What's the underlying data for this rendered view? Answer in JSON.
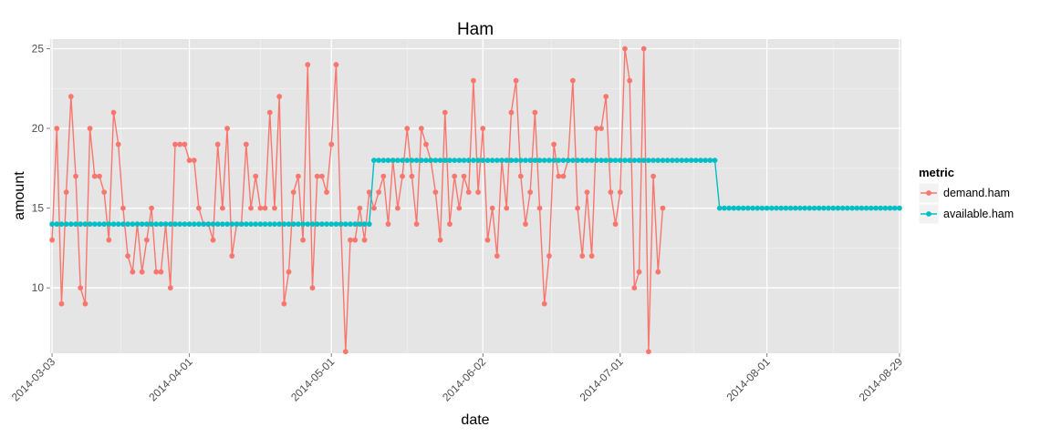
{
  "chart_data": {
    "type": "line",
    "title": "Ham",
    "xlabel": "date",
    "ylabel": "amount",
    "x_start": "2014-03-03",
    "x_end": "2014-08-29",
    "x_ticks": [
      "2014-03-03",
      "2014-04-01",
      "2014-05-01",
      "2014-06-02",
      "2014-07-01",
      "2014-08-01",
      "2014-08-29"
    ],
    "y_ticks": [
      10,
      15,
      20,
      25
    ],
    "ylim": [
      5.9,
      25.6
    ],
    "grid": true,
    "legend": {
      "title": "metric",
      "placement": "right"
    },
    "series": [
      {
        "name": "demand.ham",
        "color": "#F8766D",
        "values": [
          13,
          20,
          9,
          16,
          22,
          17,
          10,
          9,
          20,
          17,
          17,
          16,
          13,
          21,
          19,
          15,
          12,
          11,
          14,
          11,
          13,
          15,
          11,
          11,
          14,
          10,
          19,
          19,
          19,
          18,
          18,
          15,
          14,
          14,
          13,
          19,
          15,
          20,
          12,
          14,
          14,
          19,
          15,
          17,
          15,
          15,
          21,
          15,
          22,
          9,
          11,
          16,
          17,
          13,
          24,
          10,
          17,
          17,
          16,
          19,
          24,
          14,
          6,
          13,
          13,
          15,
          13,
          16,
          15,
          16,
          17,
          14,
          18,
          15,
          17,
          20,
          17,
          14,
          20,
          19,
          18,
          16,
          13,
          21,
          14,
          17,
          15,
          17,
          16,
          23,
          16,
          20,
          13,
          15,
          12,
          18,
          15,
          21,
          23,
          17,
          14,
          16,
          21,
          15,
          9,
          12,
          19,
          17,
          17,
          18,
          23,
          15,
          12,
          16,
          12,
          20,
          20,
          22,
          16,
          14,
          16,
          25,
          23,
          10,
          11,
          25,
          6,
          17,
          11,
          15
        ]
      },
      {
        "name": "available.ham",
        "color": "#00BFC4",
        "segments": [
          {
            "from": "2014-03-03",
            "to": "2014-05-09",
            "value": 14
          },
          {
            "from": "2014-05-10",
            "to": "2014-07-21",
            "value": 18
          },
          {
            "from": "2014-07-22",
            "to": "2014-08-29",
            "value": 15
          }
        ]
      }
    ]
  }
}
